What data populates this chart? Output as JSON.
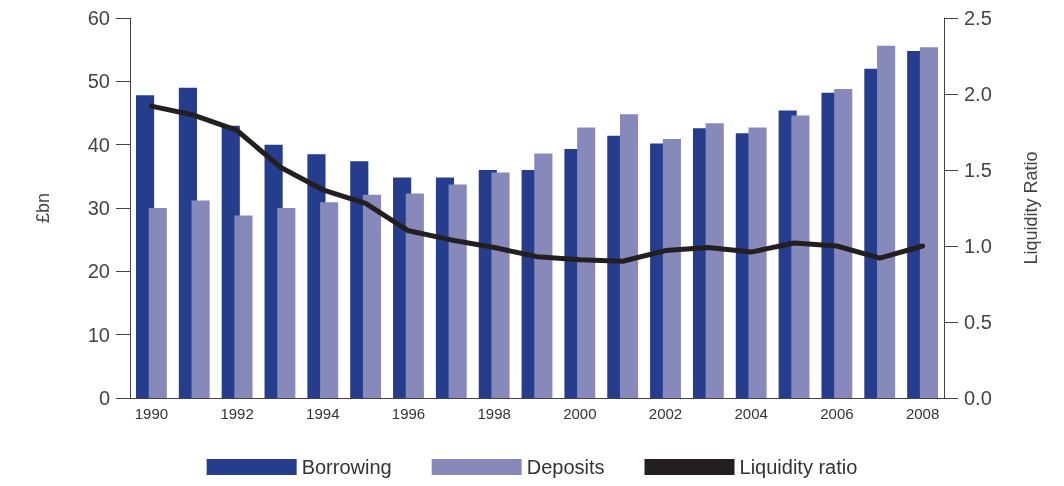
{
  "chart_data": {
    "type": "bar",
    "ylabel": "£bn",
    "y2label": "Liquidity Ratio",
    "categories": [
      "1990",
      null,
      "1992",
      null,
      "1994",
      null,
      "1996",
      null,
      "1998",
      null,
      "2000",
      null,
      "2002",
      null,
      "2004",
      null,
      "2006",
      null,
      "2008"
    ],
    "series": [
      {
        "name": "Borrowing",
        "color": "#253d8c",
        "values": [
          47.8,
          49,
          43,
          40,
          38.5,
          37.4,
          34.8,
          34.8,
          36,
          36,
          39.3,
          41.4,
          40.2,
          42.6,
          41.8,
          45.4,
          48.2,
          52,
          54.8
        ]
      },
      {
        "name": "Deposits",
        "color": "#8789ba",
        "values": [
          30,
          31.2,
          28.8,
          30,
          30.9,
          32.1,
          32.3,
          33.7,
          35.6,
          38.6,
          42.7,
          44.8,
          40.9,
          43.4,
          42.7,
          44.6,
          48.8,
          55.6,
          55.4
        ]
      },
      {
        "name": "Liquidity ratio",
        "type": "line",
        "axis": "y2",
        "color": "#231f20",
        "values": [
          1.92,
          1.86,
          1.76,
          1.52,
          1.37,
          1.28,
          1.1,
          1.04,
          0.99,
          0.93,
          0.91,
          0.9,
          0.97,
          0.99,
          0.96,
          1.02,
          1.0,
          0.92,
          1.0
        ]
      }
    ],
    "ylim": [
      0,
      60
    ],
    "yticks": [
      0,
      10,
      20,
      30,
      40,
      50,
      60
    ],
    "y2lim": [
      0,
      2.5
    ],
    "y2ticks": [
      {
        "value": 0,
        "label": "0.0"
      },
      {
        "value": 0.5,
        "label": "0.5"
      },
      {
        "value": 1,
        "label": "1.0"
      },
      {
        "value": 1.5,
        "label": "1.5"
      },
      {
        "value": 2,
        "label": "2.0"
      },
      {
        "value": 2.5,
        "label": "2.5"
      }
    ],
    "legend": "bottom",
    "grid": false,
    "marker": "none",
    "line_style": "solid"
  }
}
